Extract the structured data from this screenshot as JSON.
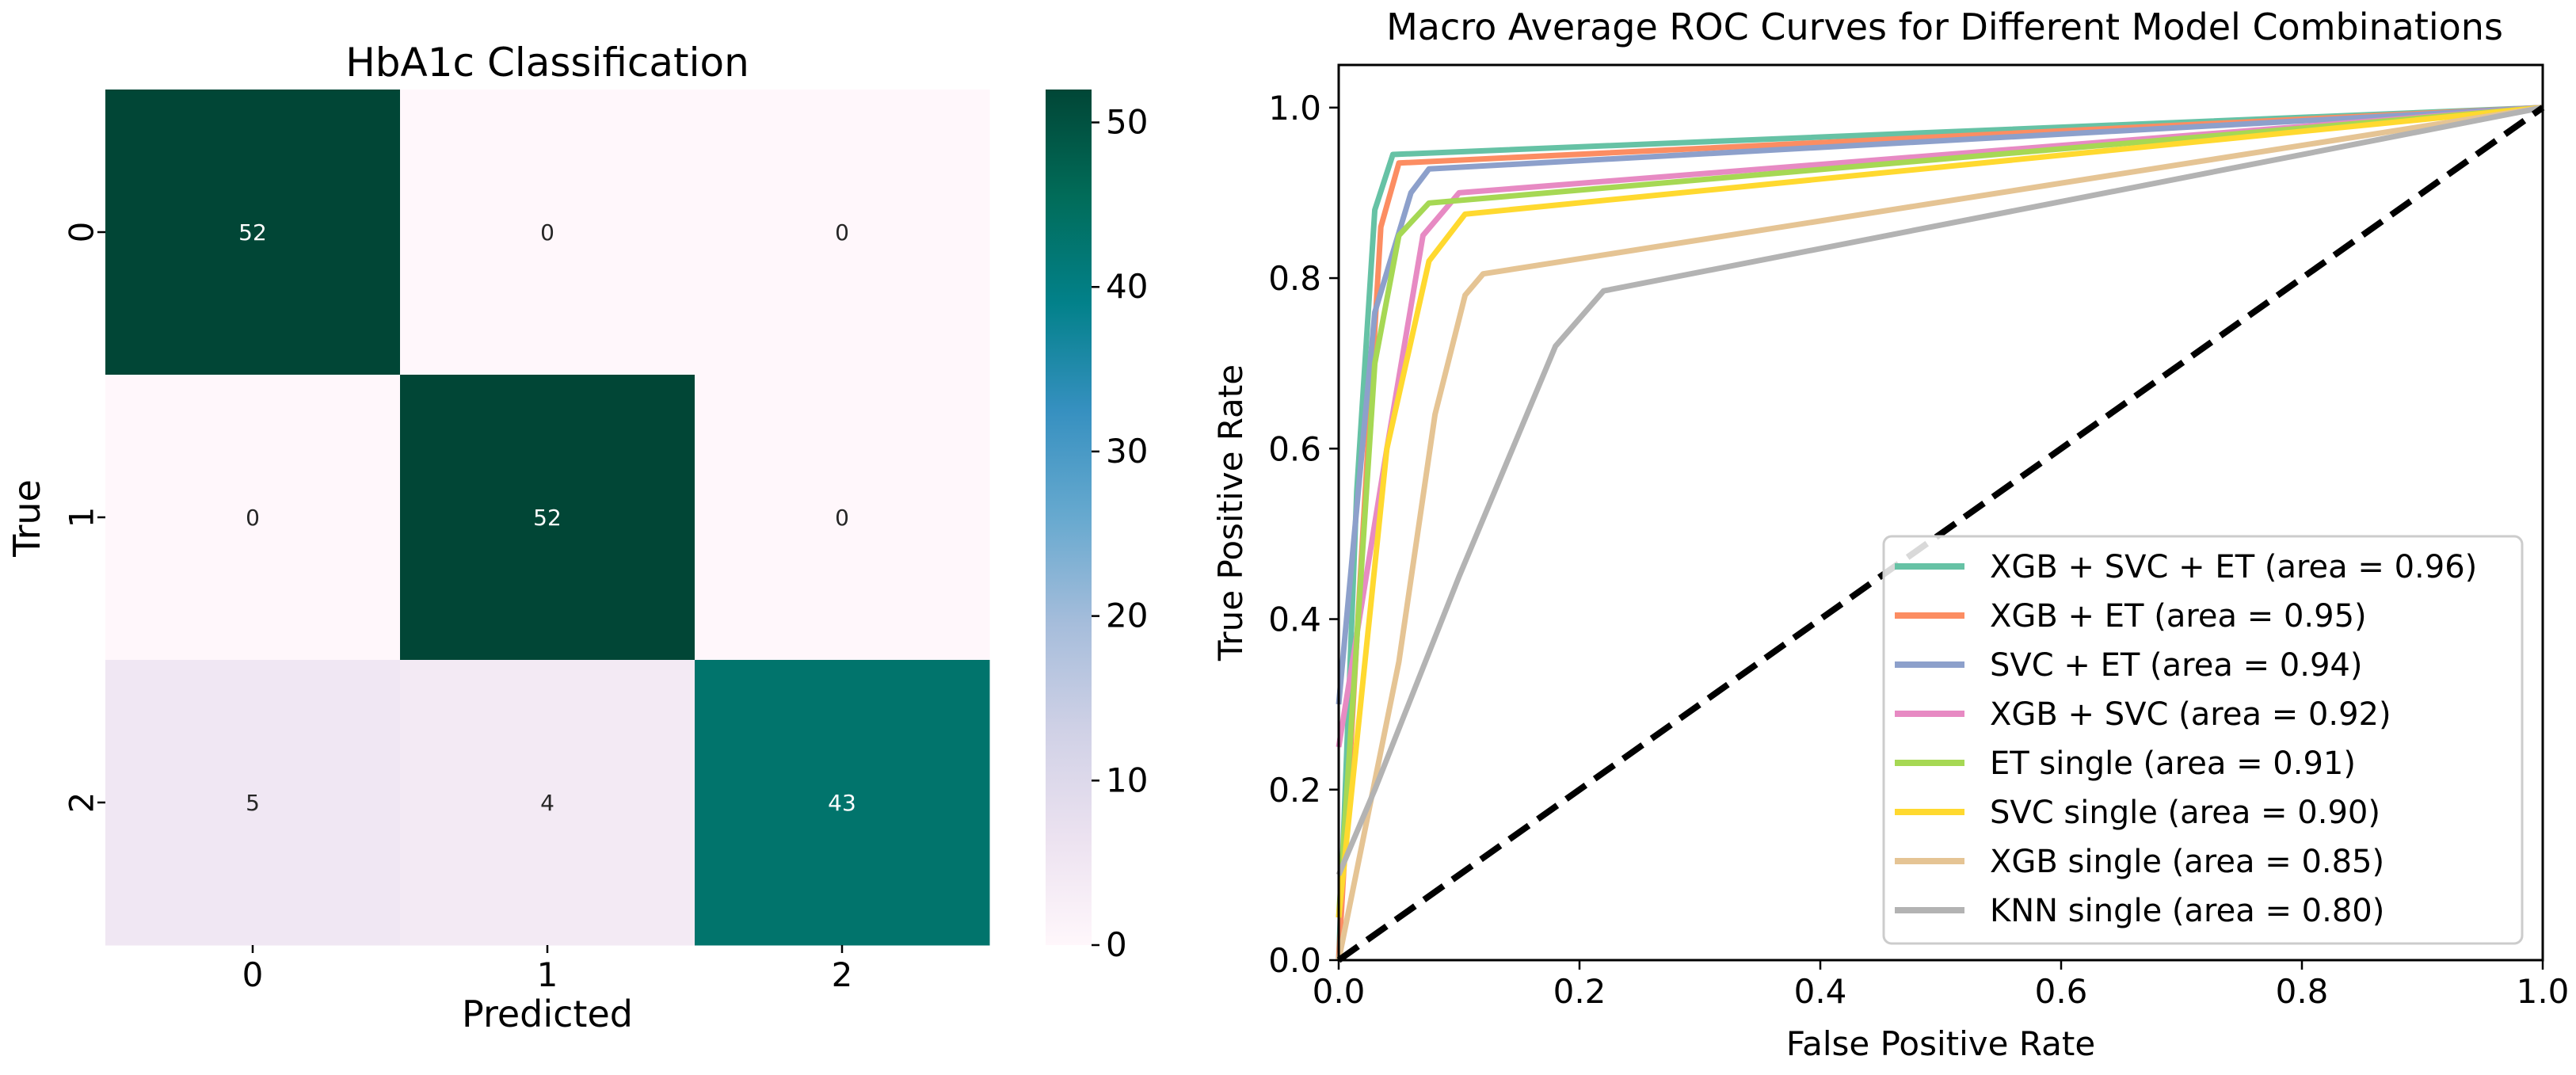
{
  "chart_data": [
    {
      "type": "heatmap",
      "title": "HbA1c Classification",
      "xlabel": "Predicted",
      "ylabel": "True",
      "x_categories": [
        "0",
        "1",
        "2"
      ],
      "y_categories": [
        "0",
        "1",
        "2"
      ],
      "matrix": [
        [
          52,
          0,
          0
        ],
        [
          0,
          52,
          0
        ],
        [
          5,
          4,
          43
        ]
      ],
      "colormap": "PuBuGn",
      "colorbar": {
        "min": 0,
        "max": 52,
        "ticks": [
          0,
          10,
          20,
          30,
          40,
          50
        ],
        "tick_labels": [
          "0",
          "10",
          "20",
          "30",
          "40",
          "50"
        ]
      }
    },
    {
      "type": "line",
      "title": "Macro Average ROC Curves for Different Model Combinations",
      "xlabel": "False Positive Rate",
      "ylabel": "True Positive Rate",
      "xlim": [
        0.0,
        1.0
      ],
      "ylim": [
        0.0,
        1.05
      ],
      "x_ticks": [
        0.0,
        0.2,
        0.4,
        0.6,
        0.8,
        1.0
      ],
      "x_tick_labels": [
        "0.0",
        "0.2",
        "0.4",
        "0.6",
        "0.8",
        "1.0"
      ],
      "y_ticks": [
        0.0,
        0.2,
        0.4,
        0.6,
        0.8,
        1.0
      ],
      "y_tick_labels": [
        "0.0",
        "0.2",
        "0.4",
        "0.6",
        "0.8",
        "1.0"
      ],
      "legend_position": "lower-right",
      "diagonal": {
        "x": [
          0,
          1
        ],
        "y": [
          0,
          1
        ],
        "style": "dashed",
        "color": "#000000"
      },
      "series": [
        {
          "name": "XGB + SVC + ET (area = 0.96)",
          "color": "#66c2a5",
          "x": [
            0,
            0.015,
            0.03,
            0.045,
            1
          ],
          "y": [
            0,
            0.55,
            0.88,
            0.945,
            1
          ]
        },
        {
          "name": "XGB + ET (area = 0.95)",
          "color": "#fc8d62",
          "x": [
            0,
            0.02,
            0.035,
            0.05,
            1
          ],
          "y": [
            0,
            0.5,
            0.86,
            0.935,
            1
          ]
        },
        {
          "name": "SVC + ET (area = 0.94)",
          "color": "#8da0cb",
          "x": [
            0,
            0.03,
            0.06,
            0.075,
            1
          ],
          "y": [
            0.3,
            0.76,
            0.9,
            0.928,
            1
          ]
        },
        {
          "name": "XGB + SVC (area = 0.92)",
          "color": "#e78ac3",
          "x": [
            0,
            0.04,
            0.07,
            0.1,
            1
          ],
          "y": [
            0.25,
            0.6,
            0.85,
            0.9,
            1
          ]
        },
        {
          "name": "ET single (area = 0.91)",
          "color": "#a6d854",
          "x": [
            0,
            0.03,
            0.05,
            0.075,
            1
          ],
          "y": [
            0.05,
            0.7,
            0.85,
            0.888,
            1
          ]
        },
        {
          "name": "SVC single (area = 0.90)",
          "color": "#ffd92f",
          "x": [
            0,
            0.04,
            0.075,
            0.105,
            1
          ],
          "y": [
            0.05,
            0.6,
            0.82,
            0.875,
            1
          ]
        },
        {
          "name": "XGB single (area = 0.85)",
          "color": "#e5c494",
          "x": [
            0,
            0.05,
            0.08,
            0.105,
            0.12,
            1
          ],
          "y": [
            0,
            0.35,
            0.64,
            0.78,
            0.805,
            1
          ]
        },
        {
          "name": "KNN single (area = 0.80)",
          "color": "#b3b3b3",
          "x": [
            0,
            0.03,
            0.1,
            0.18,
            0.22,
            1
          ],
          "y": [
            0.1,
            0.2,
            0.45,
            0.72,
            0.785,
            1
          ]
        }
      ]
    }
  ]
}
